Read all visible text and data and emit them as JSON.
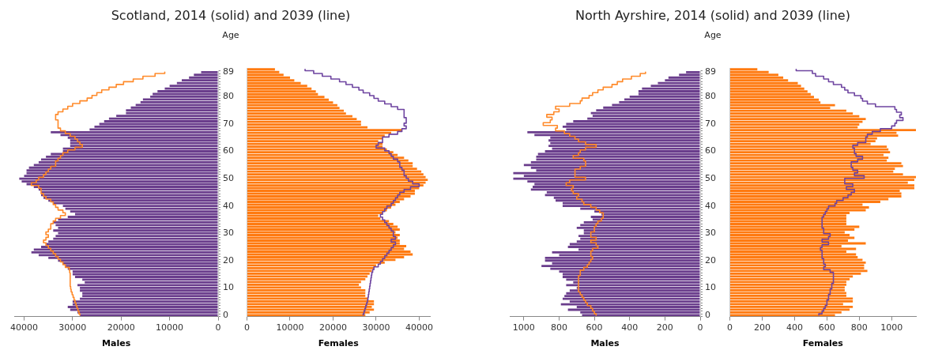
{
  "chart_data": [
    {
      "type": "bar",
      "orientation": "horizontal",
      "title": "Scotland, 2014 (solid) and 2039 (line)",
      "ylabel": "Age",
      "xlabel": "Males",
      "categories": [
        "89",
        null,
        null,
        null,
        null,
        null,
        null,
        null,
        null,
        "80",
        null,
        null,
        null,
        null,
        null,
        null,
        null,
        null,
        null,
        "70",
        null,
        null,
        null,
        null,
        null,
        null,
        null,
        null,
        null,
        "60",
        null,
        null,
        null,
        null,
        null,
        null,
        null,
        null,
        null,
        "50",
        null,
        null,
        null,
        null,
        null,
        null,
        null,
        null,
        null,
        "40",
        null,
        null,
        null,
        null,
        null,
        null,
        null,
        null,
        null,
        "30",
        null,
        null,
        null,
        null,
        null,
        null,
        null,
        null,
        null,
        "20",
        null,
        null,
        null,
        null,
        null,
        null,
        null,
        null,
        null,
        "10",
        null,
        null,
        null,
        null,
        null,
        null,
        null,
        null,
        null,
        "0"
      ],
      "xlim": [
        42000,
        0
      ],
      "xticks": [
        40000,
        30000,
        20000,
        10000,
        0
      ],
      "series": [
        {
          "color": "#6a3d8c",
          "values": [
            3500,
            5000,
            6000,
            7500,
            8500,
            10000,
            11000,
            12500,
            13500,
            14000,
            15500,
            16000,
            17000,
            18000,
            19000,
            19000,
            21000,
            22500,
            23500,
            24500,
            25500,
            26500,
            34500,
            32500,
            31000,
            30500,
            30500,
            30500,
            32000,
            32000,
            34500,
            35500,
            36500,
            37000,
            38000,
            39000,
            39500,
            39500,
            40000,
            41000,
            40500,
            39500,
            38000,
            37000,
            36500,
            36500,
            36000,
            35000,
            34000,
            32000,
            31500,
            30500,
            29500,
            31000,
            33000,
            34000,
            33500,
            33000,
            34000,
            33000,
            33500,
            34000,
            35000,
            35500,
            36500,
            38000,
            38500,
            37000,
            35000,
            33000,
            32000,
            31500,
            31000,
            30000,
            30000,
            29500,
            28000,
            27500,
            29000,
            28500,
            28500,
            28000,
            28000,
            28500,
            30000,
            30000,
            31000,
            30500,
            29000,
            28500
          ]
        },
        {
          "type": "step",
          "color": "#ff8a2a",
          "values": [
            11000,
            13000,
            15500,
            17500,
            19500,
            21000,
            22500,
            24000,
            25000,
            26000,
            27000,
            28500,
            30000,
            31000,
            32000,
            33000,
            33500,
            33500,
            33000,
            33000,
            33000,
            32500,
            31500,
            30500,
            29500,
            29000,
            28500,
            28000,
            29500,
            31000,
            32000,
            32500,
            33000,
            33500,
            33500,
            34500,
            35000,
            35500,
            36000,
            37000,
            37500,
            38500,
            37000,
            36500,
            36500,
            36000,
            35500,
            34500,
            34000,
            33500,
            33000,
            32000,
            31500,
            32500,
            33500,
            34000,
            34500,
            34500,
            35000,
            35500,
            35000,
            35500,
            36000,
            35500,
            35000,
            34500,
            34000,
            33500,
            33000,
            32500,
            32000,
            31500,
            30700,
            30600,
            30500,
            30500,
            30500,
            30500,
            30500,
            30400,
            30300,
            30100,
            29900,
            29700,
            29500,
            29300,
            29100,
            28900,
            28700,
            28500
          ]
        }
      ]
    },
    {
      "type": "bar",
      "orientation": "horizontal",
      "xlabel": "Females",
      "tick_labels": "x",
      "categories": [
        "89",
        null,
        null,
        null,
        null,
        null,
        null,
        null,
        null,
        "80",
        null,
        null,
        null,
        null,
        null,
        null,
        null,
        null,
        null,
        "70",
        null,
        null,
        null,
        null,
        null,
        null,
        null,
        null,
        null,
        "60",
        null,
        null,
        null,
        null,
        null,
        null,
        null,
        null,
        null,
        "50",
        null,
        null,
        null,
        null,
        null,
        null,
        null,
        null,
        null,
        "40",
        null,
        null,
        null,
        null,
        null,
        null,
        null,
        null,
        null,
        "30",
        null,
        null,
        null,
        null,
        null,
        null,
        null,
        null,
        null,
        "20",
        null,
        null,
        null,
        null,
        null,
        null,
        null,
        null,
        null,
        "10",
        null,
        null,
        null,
        null,
        null,
        null,
        null,
        null,
        null,
        "0"
      ],
      "xlim": [
        0,
        42500
      ],
      "xticks": [
        0,
        10000,
        20000,
        30000,
        40000
      ],
      "series": [
        {
          "color": "#ff7a10",
          "values": [
            6500,
            7500,
            8500,
            10000,
            11000,
            12500,
            14000,
            15000,
            16000,
            16500,
            18000,
            19000,
            20000,
            21000,
            21500,
            22500,
            23000,
            24500,
            25500,
            26500,
            26500,
            28000,
            36000,
            33500,
            32000,
            31500,
            30500,
            31500,
            31500,
            32500,
            34000,
            35000,
            36500,
            37500,
            38500,
            38500,
            39500,
            40500,
            41000,
            41500,
            42000,
            41500,
            41000,
            40000,
            39000,
            39000,
            38000,
            36500,
            35500,
            34500,
            33500,
            32500,
            31500,
            30500,
            31000,
            33000,
            34000,
            35000,
            35500,
            34500,
            35500,
            35000,
            35500,
            35500,
            37000,
            36500,
            38000,
            38500,
            36500,
            34500,
            32000,
            30000,
            29500,
            29000,
            28500,
            28000,
            27500,
            26500,
            26000,
            26500,
            27500,
            27500,
            27500,
            28000,
            29500,
            29500,
            29000,
            29500,
            28500,
            27500
          ]
        },
        {
          "type": "step",
          "color": "#6e44a0",
          "values": [
            13500,
            15500,
            17500,
            19500,
            21500,
            23000,
            24500,
            26000,
            27000,
            28500,
            29500,
            30500,
            32000,
            33500,
            35000,
            36500,
            36500,
            36500,
            37000,
            37000,
            36500,
            37000,
            36000,
            35000,
            33000,
            31500,
            31500,
            30500,
            30000,
            32000,
            33000,
            33500,
            34000,
            35000,
            35500,
            35500,
            36000,
            36500,
            36500,
            37000,
            37500,
            38500,
            40000,
            38000,
            36500,
            35500,
            35000,
            34500,
            34000,
            33500,
            32500,
            32000,
            31500,
            31000,
            31500,
            32000,
            32500,
            33000,
            33500,
            34000,
            34000,
            34500,
            33500,
            34500,
            34000,
            33500,
            33000,
            32500,
            32000,
            31500,
            31000,
            30500,
            29500,
            29200,
            29000,
            28900,
            28800,
            28700,
            28600,
            28500,
            28400,
            28300,
            28200,
            28100,
            28000,
            27800,
            27600,
            27400,
            27200,
            27000
          ]
        }
      ]
    },
    {
      "type": "bar",
      "orientation": "horizontal",
      "title": "North Ayrshire, 2014 (solid) and 2039 (line)",
      "ylabel": "Age",
      "xlabel": "Males",
      "categories": [
        "89",
        null,
        null,
        null,
        null,
        null,
        null,
        null,
        null,
        "80",
        null,
        null,
        null,
        null,
        null,
        null,
        null,
        null,
        null,
        "70",
        null,
        null,
        null,
        null,
        null,
        null,
        null,
        null,
        null,
        "60",
        null,
        null,
        null,
        null,
        null,
        null,
        null,
        null,
        null,
        "50",
        null,
        null,
        null,
        null,
        null,
        null,
        null,
        null,
        null,
        "40",
        null,
        null,
        null,
        null,
        null,
        null,
        null,
        null,
        null,
        "30",
        null,
        null,
        null,
        null,
        null,
        null,
        null,
        null,
        null,
        "20",
        null,
        null,
        null,
        null,
        null,
        null,
        null,
        null,
        null,
        "10",
        null,
        null,
        null,
        null,
        null,
        null,
        null,
        null,
        null,
        "0"
      ],
      "xlim": [
        1080,
        0
      ],
      "xticks": [
        1000,
        800,
        600,
        400,
        200,
        0
      ],
      "series": [
        {
          "color": "#6a3d8c",
          "values": [
            80,
            120,
            180,
            200,
            240,
            280,
            330,
            350,
            350,
            400,
            430,
            460,
            500,
            550,
            590,
            620,
            610,
            640,
            720,
            760,
            780,
            760,
            980,
            940,
            850,
            860,
            850,
            860,
            840,
            880,
            920,
            930,
            930,
            960,
            1000,
            960,
            930,
            1060,
            1000,
            1060,
            980,
            940,
            950,
            960,
            870,
            880,
            830,
            820,
            780,
            780,
            680,
            600,
            560,
            620,
            610,
            660,
            680,
            700,
            660,
            660,
            690,
            680,
            700,
            740,
            750,
            690,
            840,
            800,
            880,
            880,
            840,
            900,
            850,
            800,
            780,
            780,
            760,
            720,
            760,
            700,
            740,
            760,
            770,
            780,
            740,
            790,
            700,
            750,
            680,
            670
          ]
        },
        {
          "type": "step",
          "color": "#ff8a2a",
          "values": [
            310,
            340,
            390,
            440,
            470,
            500,
            550,
            580,
            610,
            630,
            670,
            680,
            740,
            820,
            800,
            830,
            870,
            840,
            850,
            890,
            810,
            820,
            770,
            740,
            710,
            690,
            650,
            590,
            650,
            680,
            690,
            720,
            660,
            650,
            650,
            680,
            710,
            710,
            710,
            650,
            740,
            760,
            720,
            730,
            720,
            690,
            700,
            670,
            660,
            620,
            590,
            570,
            550,
            550,
            560,
            580,
            590,
            600,
            600,
            620,
            620,
            590,
            620,
            590,
            580,
            610,
            620,
            620,
            610,
            620,
            630,
            640,
            660,
            680,
            680,
            690,
            690,
            690,
            690,
            690,
            690,
            680,
            670,
            660,
            650,
            640,
            620,
            610,
            600,
            590
          ]
        }
      ]
    },
    {
      "type": "bar",
      "orientation": "horizontal",
      "xlabel": "Females",
      "tick_labels": "x",
      "categories": [
        "89",
        null,
        null,
        null,
        null,
        null,
        null,
        null,
        null,
        "80",
        null,
        null,
        null,
        null,
        null,
        null,
        null,
        null,
        null,
        "70",
        null,
        null,
        null,
        null,
        null,
        null,
        null,
        null,
        null,
        "60",
        null,
        null,
        null,
        null,
        null,
        null,
        null,
        null,
        null,
        "50",
        null,
        null,
        null,
        null,
        null,
        null,
        null,
        null,
        null,
        "40",
        null,
        null,
        null,
        null,
        null,
        null,
        null,
        null,
        null,
        "30",
        null,
        null,
        null,
        null,
        null,
        null,
        null,
        null,
        null,
        "20",
        null,
        null,
        null,
        null,
        null,
        null,
        null,
        null,
        null,
        "10",
        null,
        null,
        null,
        null,
        null,
        null,
        null,
        null,
        null,
        "0"
      ],
      "xlim": [
        0,
        1150
      ],
      "xticks": [
        0,
        200,
        400,
        600,
        800,
        1000
      ],
      "series": [
        {
          "color": "#ff7a10",
          "values": [
            170,
            240,
            300,
            330,
            360,
            420,
            440,
            460,
            480,
            500,
            520,
            550,
            560,
            650,
            620,
            720,
            760,
            800,
            840,
            820,
            800,
            790,
            1150,
            1030,
            1040,
            910,
            900,
            870,
            970,
            980,
            990,
            950,
            980,
            970,
            1060,
            1070,
            1020,
            1010,
            1070,
            1150,
            1140,
            1100,
            1140,
            1140,
            1050,
            1060,
            1060,
            980,
            930,
            820,
            860,
            840,
            740,
            720,
            720,
            720,
            720,
            800,
            770,
            710,
            740,
            770,
            730,
            840,
            690,
            780,
            720,
            780,
            790,
            820,
            840,
            830,
            830,
            850,
            810,
            760,
            740,
            720,
            720,
            710,
            710,
            720,
            720,
            760,
            760,
            700,
            760,
            740,
            690,
            650
          ]
        },
        {
          "type": "step",
          "color": "#6e44a0",
          "values": [
            410,
            510,
            530,
            580,
            610,
            640,
            690,
            710,
            730,
            770,
            810,
            820,
            850,
            900,
            1020,
            1030,
            1060,
            1050,
            1070,
            1030,
            1020,
            1000,
            930,
            880,
            850,
            840,
            840,
            790,
            760,
            770,
            770,
            780,
            820,
            790,
            750,
            750,
            760,
            790,
            770,
            830,
            710,
            710,
            760,
            720,
            770,
            750,
            730,
            700,
            660,
            650,
            610,
            600,
            590,
            580,
            570,
            570,
            570,
            570,
            580,
            580,
            620,
            610,
            570,
            610,
            570,
            560,
            570,
            570,
            570,
            580,
            580,
            590,
            580,
            620,
            640,
            640,
            640,
            640,
            630,
            630,
            620,
            620,
            610,
            610,
            600,
            600,
            590,
            580,
            570,
            550
          ]
        }
      ]
    }
  ]
}
